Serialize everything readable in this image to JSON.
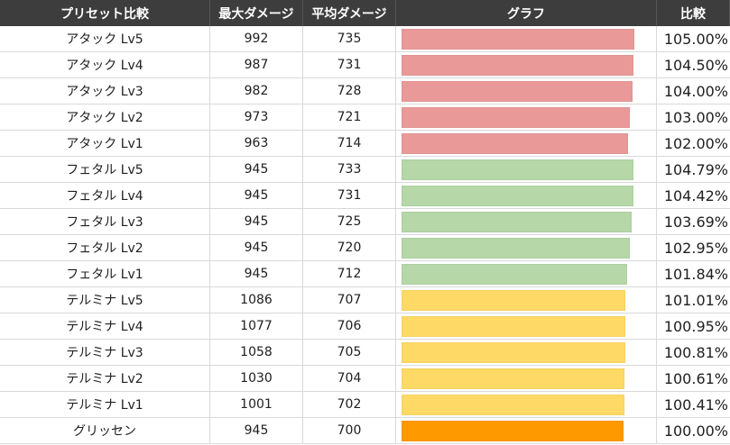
{
  "headers": {
    "preset": "プリセット比較",
    "max_damage": "最大ダメージ",
    "avg_damage": "平均ダメージ",
    "graph": "グラフ",
    "ratio": "比較"
  },
  "colors": {
    "attack": "#ea9999",
    "fetal": "#b6d7a8",
    "terumina": "#ffd966",
    "base": "#ff9900"
  },
  "rows": [
    {
      "name": "アタック Lv5",
      "max": "992",
      "avg": "735",
      "ratio_text": "105.00%",
      "ratio": 105.0,
      "group": "attack"
    },
    {
      "name": "アタック Lv4",
      "max": "987",
      "avg": "731",
      "ratio_text": "104.50%",
      "ratio": 104.5,
      "group": "attack"
    },
    {
      "name": "アタック Lv3",
      "max": "982",
      "avg": "728",
      "ratio_text": "104.00%",
      "ratio": 104.0,
      "group": "attack"
    },
    {
      "name": "アタック Lv2",
      "max": "973",
      "avg": "721",
      "ratio_text": "103.00%",
      "ratio": 103.0,
      "group": "attack"
    },
    {
      "name": "アタック Lv1",
      "max": "963",
      "avg": "714",
      "ratio_text": "102.00%",
      "ratio": 102.0,
      "group": "attack"
    },
    {
      "name": "フェタル Lv5",
      "max": "945",
      "avg": "733",
      "ratio_text": "104.79%",
      "ratio": 104.79,
      "group": "fetal"
    },
    {
      "name": "フェタル Lv4",
      "max": "945",
      "avg": "731",
      "ratio_text": "104.42%",
      "ratio": 104.42,
      "group": "fetal"
    },
    {
      "name": "フェタル Lv3",
      "max": "945",
      "avg": "725",
      "ratio_text": "103.69%",
      "ratio": 103.69,
      "group": "fetal"
    },
    {
      "name": "フェタル Lv2",
      "max": "945",
      "avg": "720",
      "ratio_text": "102.95%",
      "ratio": 102.95,
      "group": "fetal"
    },
    {
      "name": "フェタル Lv1",
      "max": "945",
      "avg": "712",
      "ratio_text": "101.84%",
      "ratio": 101.84,
      "group": "fetal"
    },
    {
      "name": "テルミナ Lv5",
      "max": "1086",
      "avg": "707",
      "ratio_text": "101.01%",
      "ratio": 101.01,
      "group": "terumina"
    },
    {
      "name": "テルミナ Lv4",
      "max": "1077",
      "avg": "706",
      "ratio_text": "100.95%",
      "ratio": 100.95,
      "group": "terumina"
    },
    {
      "name": "テルミナ Lv3",
      "max": "1058",
      "avg": "705",
      "ratio_text": "100.81%",
      "ratio": 100.81,
      "group": "terumina"
    },
    {
      "name": "テルミナ Lv2",
      "max": "1030",
      "avg": "704",
      "ratio_text": "100.61%",
      "ratio": 100.61,
      "group": "terumina"
    },
    {
      "name": "テルミナ Lv1",
      "max": "1001",
      "avg": "702",
      "ratio_text": "100.41%",
      "ratio": 100.41,
      "group": "terumina"
    },
    {
      "name": "グリッセン",
      "max": "945",
      "avg": "700",
      "ratio_text": "100.00%",
      "ratio": 100.0,
      "group": "base"
    }
  ]
}
